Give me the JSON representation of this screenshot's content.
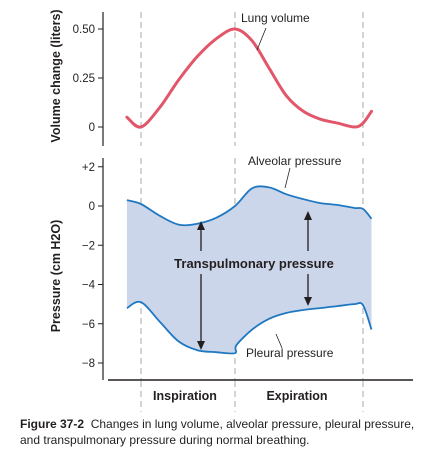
{
  "caption": {
    "label": "Figure 37-2",
    "text": "Changes in lung volume, alveolar pressure, pleural pressure, and transpulmonary pressure during normal breathing."
  },
  "colors": {
    "volume_line": "#e2566a",
    "pressure_line": "#1f78c1",
    "shade": "#ccd6ea",
    "divider": "#aaaaaa"
  },
  "chart_data": [
    {
      "type": "line",
      "ylabel": "Volume change (liters)",
      "yticks": [
        "0.50",
        "0.25",
        "0"
      ],
      "ylim": [
        -0.04,
        0.58
      ],
      "phase_times": [
        0,
        2,
        5
      ],
      "series": [
        {
          "name": "Lung volume",
          "x": [
            -0.3,
            0,
            0.4,
            0.8,
            1.2,
            1.6,
            2.0,
            2.4,
            2.8,
            3.2,
            3.6,
            4.0,
            4.4,
            4.8,
            5.0,
            5.2
          ],
          "y": [
            0.05,
            0.0,
            0.1,
            0.24,
            0.36,
            0.45,
            0.5,
            0.44,
            0.3,
            0.16,
            0.08,
            0.04,
            0.02,
            0.0,
            0.02,
            0.08
          ]
        }
      ]
    },
    {
      "type": "area",
      "ylabel": "Pressure (cm H2O)",
      "yticks": [
        "+2",
        "0",
        "−2",
        "−4",
        "−6",
        "−8"
      ],
      "ylim": [
        -9,
        2.2
      ],
      "annotations": [
        "Transpulmonary pressure"
      ],
      "series": [
        {
          "name": "Alveolar pressure",
          "x": [
            -0.3,
            0,
            0.4,
            0.8,
            1.2,
            1.6,
            2.0,
            2.4,
            2.8,
            3.2,
            3.6,
            4.0,
            4.4,
            4.8,
            5.0,
            5.2
          ],
          "y": [
            0.3,
            0.1,
            -0.5,
            -0.95,
            -0.9,
            -0.6,
            0.0,
            0.9,
            0.95,
            0.6,
            0.35,
            0.15,
            0.05,
            -0.1,
            -0.15,
            -0.65
          ]
        },
        {
          "name": "Pleural pressure",
          "x": [
            -0.3,
            0,
            0.4,
            0.8,
            1.2,
            1.6,
            2.0,
            2.03,
            2.4,
            2.8,
            3.2,
            3.6,
            4.0,
            4.4,
            4.8,
            5.0,
            5.2
          ],
          "y": [
            -5.2,
            -4.9,
            -5.9,
            -6.9,
            -7.35,
            -7.45,
            -7.5,
            -7.1,
            -6.3,
            -5.75,
            -5.45,
            -5.3,
            -5.2,
            -5.1,
            -5.0,
            -5.05,
            -6.3
          ]
        }
      ]
    },
    {
      "type": "bar",
      "phase_labels": [
        "Inspiration",
        "Expiration"
      ]
    }
  ]
}
